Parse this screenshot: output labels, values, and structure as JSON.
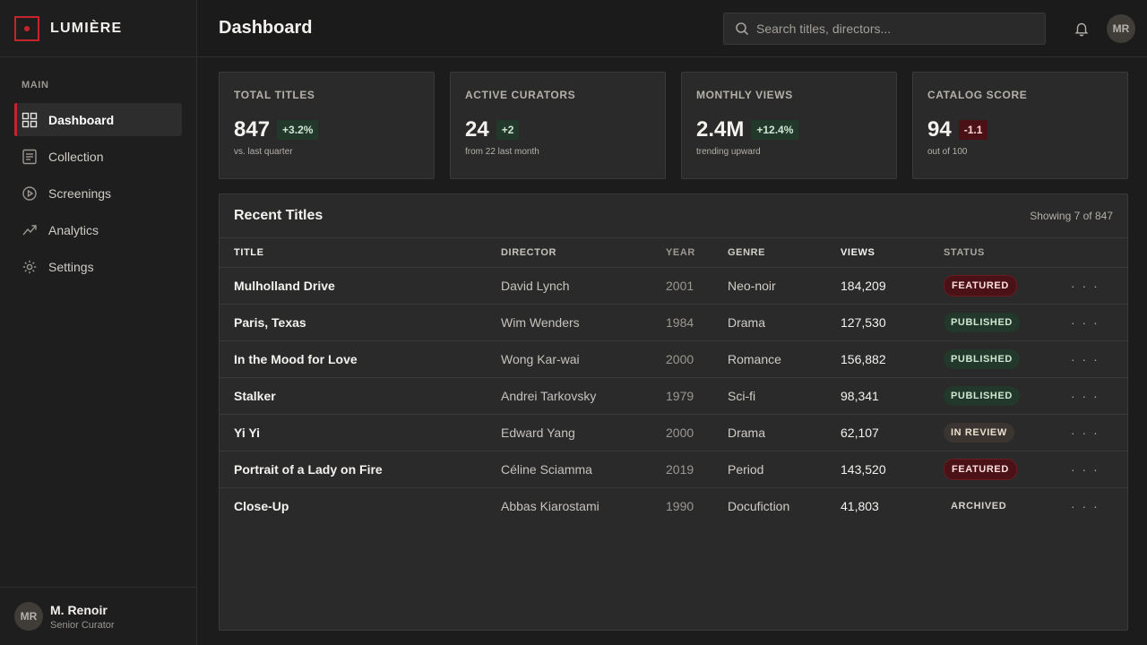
{
  "brand": {
    "name": "LUMIÈRE"
  },
  "sidebar": {
    "section_label": "MAIN",
    "items": [
      {
        "label": "Dashboard",
        "icon": "grid-icon",
        "active": true
      },
      {
        "label": "Collection",
        "icon": "document-icon",
        "active": false
      },
      {
        "label": "Screenings",
        "icon": "play-circle-icon",
        "active": false
      },
      {
        "label": "Analytics",
        "icon": "trend-up-icon",
        "active": false
      },
      {
        "label": "Settings",
        "icon": "gear-icon",
        "active": false
      }
    ],
    "user": {
      "initials": "MR",
      "name": "M. Renoir",
      "role": "Senior Curator"
    }
  },
  "header": {
    "title": "Dashboard",
    "search_placeholder": "Search titles, directors...",
    "avatar_initials": "MR"
  },
  "stats": [
    {
      "label": "TOTAL TITLES",
      "value": "847",
      "delta": "+3.2%",
      "trend": "up",
      "sub": "vs. last quarter"
    },
    {
      "label": "ACTIVE CURATORS",
      "value": "24",
      "delta": "+2",
      "trend": "up",
      "sub": "from 22 last month"
    },
    {
      "label": "MONTHLY VIEWS",
      "value": "2.4M",
      "delta": "+12.4%",
      "trend": "up",
      "sub": "trending upward"
    },
    {
      "label": "CATALOG SCORE",
      "value": "94",
      "delta": "-1.1",
      "trend": "down",
      "sub": "out of 100"
    }
  ],
  "table": {
    "title": "Recent Titles",
    "count_text": "Showing 7 of 847",
    "columns": [
      "TITLE",
      "DIRECTOR",
      "YEAR",
      "GENRE",
      "VIEWS",
      "STATUS"
    ],
    "more_label": "· · ·",
    "rows": [
      {
        "title": "Mulholland Drive",
        "director": "David Lynch",
        "year": "2001",
        "genre": "Neo-noir",
        "views": "184,209",
        "status": "FEATURED"
      },
      {
        "title": "Paris, Texas",
        "director": "Wim Wenders",
        "year": "1984",
        "genre": "Drama",
        "views": "127,530",
        "status": "PUBLISHED"
      },
      {
        "title": "In the Mood for Love",
        "director": "Wong Kar-wai",
        "year": "2000",
        "genre": "Romance",
        "views": "156,882",
        "status": "PUBLISHED"
      },
      {
        "title": "Stalker",
        "director": "Andrei Tarkovsky",
        "year": "1979",
        "genre": "Sci-fi",
        "views": "98,341",
        "status": "PUBLISHED"
      },
      {
        "title": "Yi Yi",
        "director": "Edward Yang",
        "year": "2000",
        "genre": "Drama",
        "views": "62,107",
        "status": "IN REVIEW"
      },
      {
        "title": "Portrait of a Lady on Fire",
        "director": "Céline Sciamma",
        "year": "2019",
        "genre": "Period",
        "views": "143,520",
        "status": "FEATURED"
      },
      {
        "title": "Close-Up",
        "director": "Abbas Kiarostami",
        "year": "1990",
        "genre": "Docufiction",
        "views": "41,803",
        "status": "ARCHIVED"
      }
    ]
  },
  "colors": {
    "accent": "#c8232c",
    "positive": "#22382a",
    "negative": "#4a1216",
    "background": "#1b1b1b",
    "panel": "#2a2a2a"
  }
}
